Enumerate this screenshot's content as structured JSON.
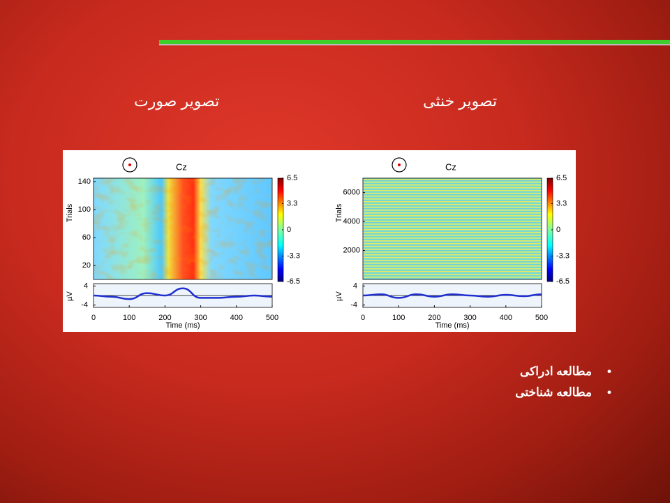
{
  "slide": {
    "headings": [
      "تصویر صورت",
      "تصویر خنثی"
    ],
    "bullets": [
      "مطالعه ادراکی",
      "مطالعه شناختی"
    ]
  },
  "chart_data": [
    {
      "type": "line",
      "title": "Cz",
      "xlabel": "Time (ms)",
      "ylabel": "µV",
      "image_ylabel": "Trials",
      "x": [
        0,
        50,
        100,
        150,
        200,
        250,
        300,
        350,
        400,
        450,
        500
      ],
      "values": [
        0,
        -0.5,
        -1.5,
        1,
        0,
        3,
        -1,
        -1,
        -0.5,
        0,
        -0.5
      ],
      "color": "#1f2fd0",
      "xlim": [
        0,
        500
      ],
      "xticks": [
        0,
        100,
        200,
        300,
        400,
        500
      ],
      "ylim": [
        -5,
        5
      ],
      "yticks": [
        -4,
        4
      ],
      "image_ylim": [
        0,
        145
      ],
      "image_yticks": [
        20,
        60,
        100,
        140
      ],
      "colorbar_lim": [
        -6.5,
        6.5
      ],
      "colorbar_ticks": [
        6.5,
        3.3,
        0,
        -3.3,
        -6.5
      ]
    },
    {
      "type": "line",
      "title": "Cz",
      "xlabel": "Time (ms)",
      "ylabel": "µV",
      "image_ylabel": "Trials",
      "x": [
        0,
        50,
        100,
        150,
        200,
        250,
        300,
        350,
        400,
        450,
        500
      ],
      "values": [
        0,
        0.5,
        -1,
        0.5,
        -0.5,
        0.5,
        0,
        -0.5,
        0.3,
        -0.3,
        0.5
      ],
      "color": "#1f2fd0",
      "xlim": [
        0,
        500
      ],
      "xticks": [
        0,
        100,
        200,
        300,
        400,
        500
      ],
      "ylim": [
        -5,
        5
      ],
      "yticks": [
        -4,
        4
      ],
      "image_ylim": [
        0,
        7000
      ],
      "image_yticks": [
        2000,
        4000,
        6000
      ],
      "colorbar_lim": [
        -6.5,
        6.5
      ],
      "colorbar_ticks": [
        6.5,
        3.3,
        0,
        -3.3,
        -6.5
      ]
    }
  ]
}
